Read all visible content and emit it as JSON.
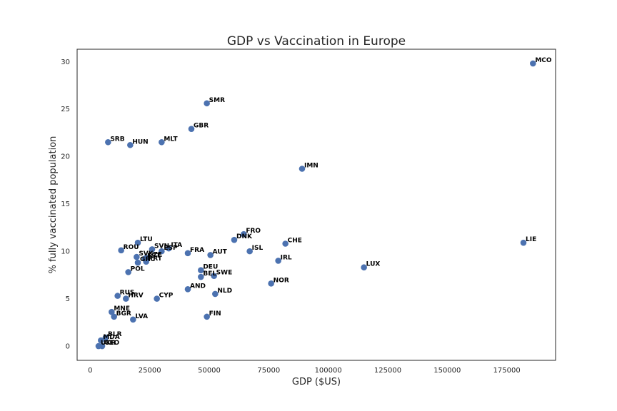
{
  "chart_data": {
    "type": "scatter",
    "title": "GDP vs Vaccination in Europe",
    "xlabel": "GDP ($US)",
    "ylabel": "% fully vaccinated population",
    "xlim": [
      -5500,
      195500
    ],
    "ylim": [
      -1.5,
      31.3
    ],
    "xticks": [
      0,
      25000,
      50000,
      75000,
      100000,
      125000,
      150000,
      175000
    ],
    "xtick_labels": [
      "0",
      "25000",
      "50000",
      "75000",
      "100000",
      "125000",
      "150000",
      "175000"
    ],
    "yticks": [
      0,
      5,
      10,
      15,
      20,
      25,
      30
    ],
    "ytick_labels": [
      "0",
      "5",
      "10",
      "15",
      "20",
      "25",
      "30"
    ],
    "grid": false,
    "marker_color": "#4c72b0",
    "points": [
      {
        "label": "MCO",
        "x": 186000,
        "y": 29.8
      },
      {
        "label": "SMR",
        "x": 49000,
        "y": 25.6
      },
      {
        "label": "GBR",
        "x": 42500,
        "y": 22.9
      },
      {
        "label": "SRB",
        "x": 7500,
        "y": 21.5
      },
      {
        "label": "HUN",
        "x": 16800,
        "y": 21.2
      },
      {
        "label": "MLT",
        "x": 30000,
        "y": 21.5
      },
      {
        "label": "IMN",
        "x": 89000,
        "y": 18.7
      },
      {
        "label": "LIE",
        "x": 182000,
        "y": 10.9
      },
      {
        "label": "FRO",
        "x": 64500,
        "y": 11.8
      },
      {
        "label": "DNK",
        "x": 60500,
        "y": 11.2
      },
      {
        "label": "CHE",
        "x": 82000,
        "y": 10.8
      },
      {
        "label": "LTU",
        "x": 20000,
        "y": 10.9
      },
      {
        "label": "ROU",
        "x": 13000,
        "y": 10.1
      },
      {
        "label": "SVN",
        "x": 26000,
        "y": 10.2
      },
      {
        "label": "ESP",
        "x": 30000,
        "y": 10.0
      },
      {
        "label": "ITA",
        "x": 33000,
        "y": 10.3
      },
      {
        "label": "FRA",
        "x": 41000,
        "y": 9.8
      },
      {
        "label": "AUT",
        "x": 50500,
        "y": 9.6
      },
      {
        "label": "ISL",
        "x": 67000,
        "y": 10.0
      },
      {
        "label": "IRL",
        "x": 79000,
        "y": 9.0
      },
      {
        "label": "SVK",
        "x": 19500,
        "y": 9.4
      },
      {
        "label": "CZE",
        "x": 23500,
        "y": 9.3
      },
      {
        "label": "EST",
        "x": 23000,
        "y": 9.2
      },
      {
        "label": "GRC",
        "x": 20000,
        "y": 8.8
      },
      {
        "label": "PRT",
        "x": 23500,
        "y": 8.9
      },
      {
        "label": "LUX",
        "x": 115000,
        "y": 8.3
      },
      {
        "label": "POL",
        "x": 16000,
        "y": 7.8
      },
      {
        "label": "DEU",
        "x": 46500,
        "y": 8.0
      },
      {
        "label": "BEL",
        "x": 46500,
        "y": 7.3
      },
      {
        "label": "SWE",
        "x": 52000,
        "y": 7.4
      },
      {
        "label": "NOR",
        "x": 76000,
        "y": 6.6
      },
      {
        "label": "AND",
        "x": 41000,
        "y": 6.0
      },
      {
        "label": "NLD",
        "x": 52500,
        "y": 5.5
      },
      {
        "label": "RUS",
        "x": 11500,
        "y": 5.3
      },
      {
        "label": "HRV",
        "x": 15000,
        "y": 5.0
      },
      {
        "label": "CYP",
        "x": 28000,
        "y": 5.0
      },
      {
        "label": "MNE",
        "x": 9000,
        "y": 3.6
      },
      {
        "label": "BGR",
        "x": 10000,
        "y": 3.1
      },
      {
        "label": "LVA",
        "x": 18000,
        "y": 2.8
      },
      {
        "label": "FIN",
        "x": 49000,
        "y": 3.1
      },
      {
        "label": "BLR",
        "x": 6500,
        "y": 0.9
      },
      {
        "label": "MDA",
        "x": 4500,
        "y": 0.6
      },
      {
        "label": "UKR",
        "x": 3500,
        "y": 0.0
      },
      {
        "label": "GEO",
        "x": 5000,
        "y": 0.0
      }
    ]
  }
}
